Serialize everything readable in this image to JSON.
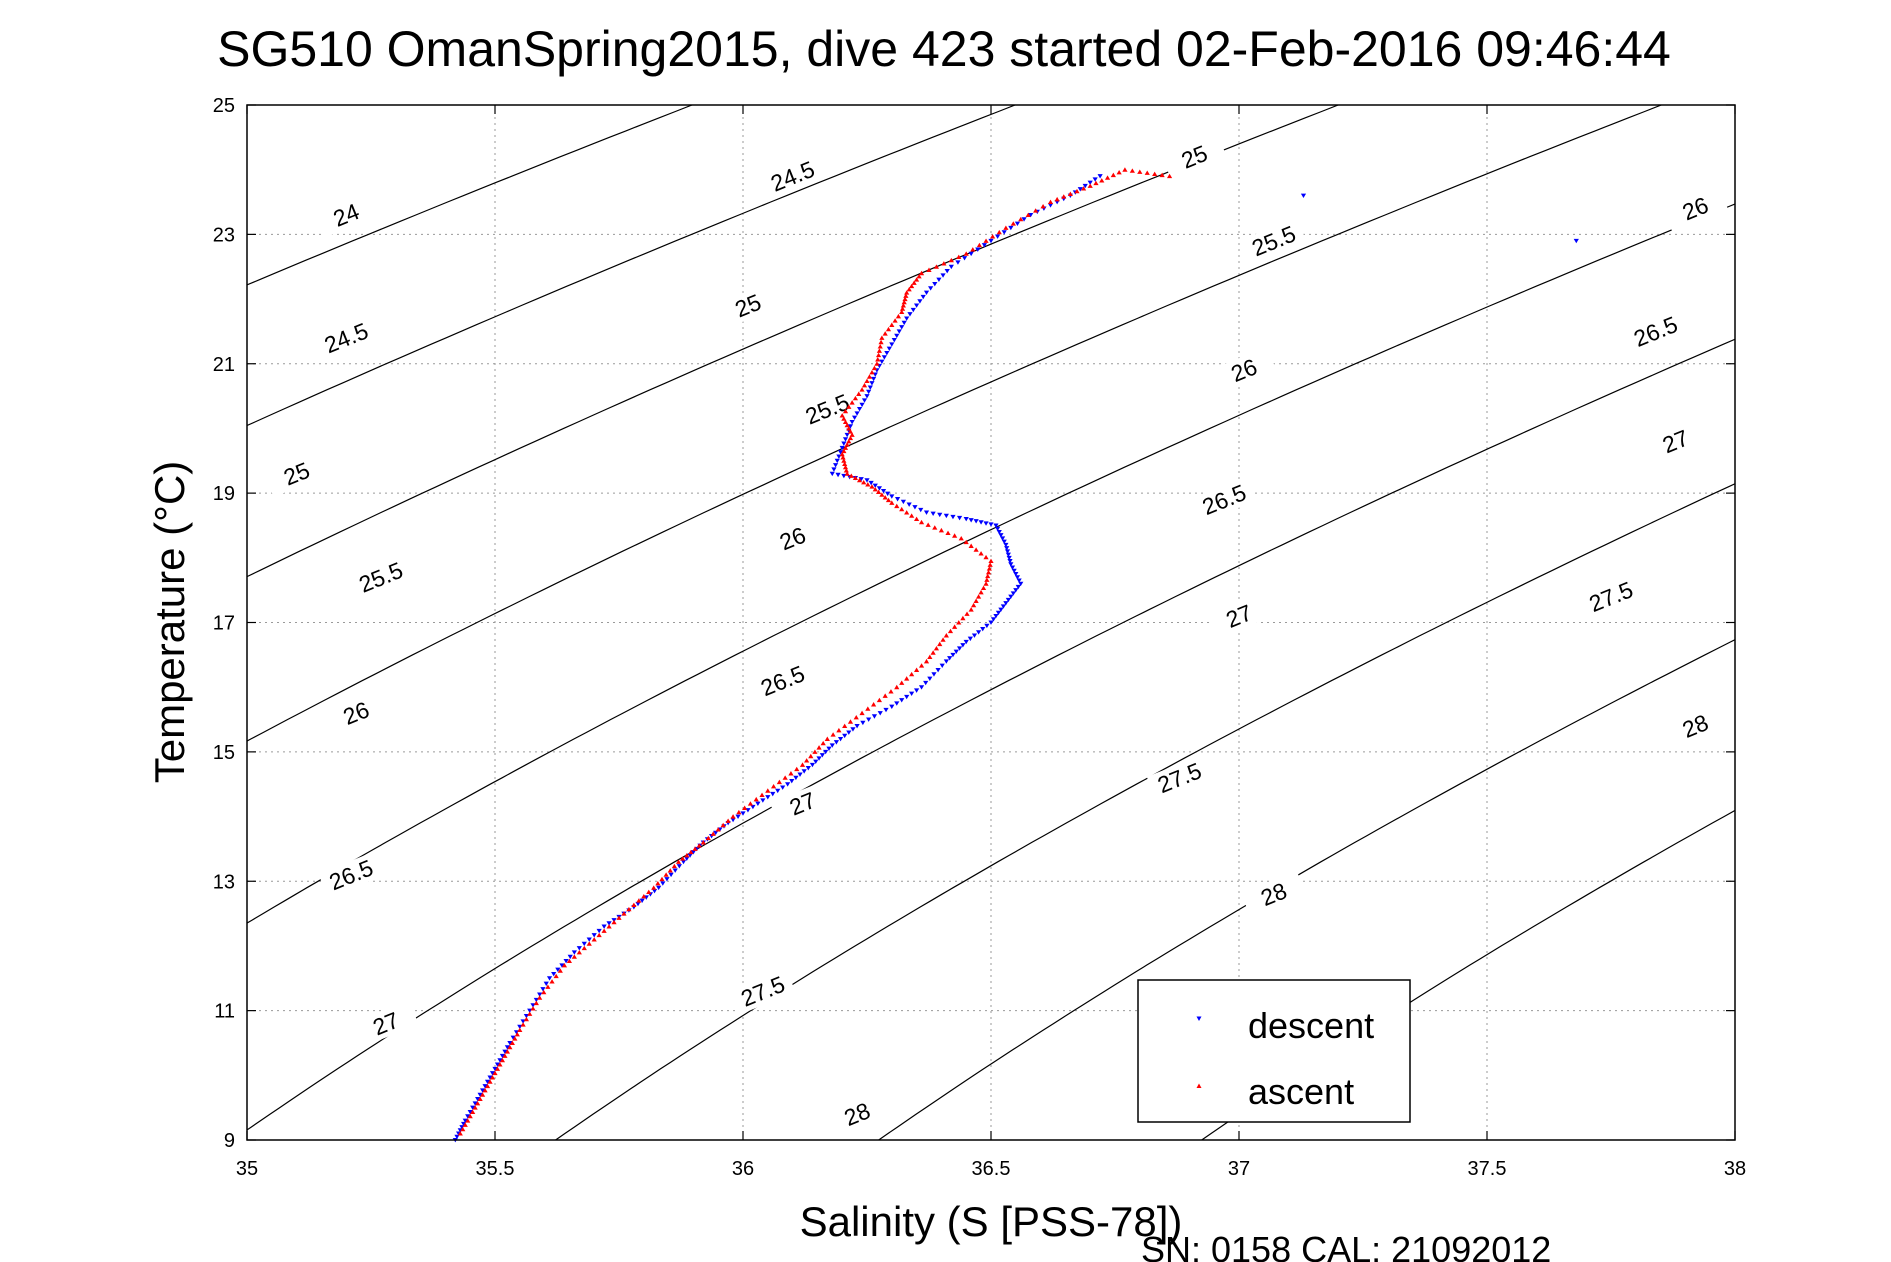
{
  "chart_data": {
    "type": "scatter",
    "title": "SG510 OmanSpring2015, dive 423 started 02-Feb-2016 09:46:44",
    "xlabel": "Salinity (S [PSS-78])",
    "ylabel": "Temperature (°C)",
    "footer": "SN: 0158  CAL: 21092012",
    "xlim": [
      35,
      38
    ],
    "ylim": [
      9,
      25
    ],
    "xticks": [
      35,
      35.5,
      36,
      36.5,
      37,
      37.5,
      38
    ],
    "xtick_labels": [
      "35",
      "35.5",
      "36",
      "36.5",
      "37",
      "37.5",
      "38"
    ],
    "yticks": [
      9,
      11,
      13,
      15,
      17,
      19,
      21,
      23,
      25
    ],
    "ytick_labels": [
      "9",
      "11",
      "13",
      "15",
      "17",
      "19",
      "21",
      "23",
      "25"
    ],
    "grid": true,
    "legend_position": "bottom-right",
    "density_contours": {
      "levels": [
        24,
        24.5,
        25,
        25.5,
        26,
        26.5,
        27,
        27.5,
        28
      ],
      "labels": [
        {
          "text": "24",
          "s": 35.2,
          "t": 23.3
        },
        {
          "text": "24.5",
          "s": 35.2,
          "t": 21.4
        },
        {
          "text": "25",
          "s": 35.1,
          "t": 19.3
        },
        {
          "text": "25.5",
          "s": 35.27,
          "t": 17.7
        },
        {
          "text": "26",
          "s": 35.22,
          "t": 15.6
        },
        {
          "text": "26.5",
          "s": 35.21,
          "t": 13.1
        },
        {
          "text": "27",
          "s": 35.28,
          "t": 10.8
        },
        {
          "text": "24.5",
          "s": 36.1,
          "t": 23.9
        },
        {
          "text": "25",
          "s": 36.01,
          "t": 21.9
        },
        {
          "text": "25.5",
          "s": 36.17,
          "t": 20.3
        },
        {
          "text": "26",
          "s": 36.1,
          "t": 18.3
        },
        {
          "text": "26.5",
          "s": 36.08,
          "t": 16.1
        },
        {
          "text": "27",
          "s": 36.12,
          "t": 14.2
        },
        {
          "text": "27.5",
          "s": 36.04,
          "t": 11.3
        },
        {
          "text": "28",
          "s": 36.23,
          "t": 9.4
        },
        {
          "text": "25",
          "s": 36.91,
          "t": 24.2
        },
        {
          "text": "25.5",
          "s": 37.07,
          "t": 22.9
        },
        {
          "text": "26",
          "s": 37.01,
          "t": 20.9
        },
        {
          "text": "26.5",
          "s": 36.97,
          "t": 18.9
        },
        {
          "text": "27",
          "s": 37.0,
          "t": 17.1
        },
        {
          "text": "27.5",
          "s": 36.88,
          "t": 14.6
        },
        {
          "text": "28",
          "s": 37.07,
          "t": 12.8
        },
        {
          "text": "26",
          "s": 37.92,
          "t": 23.4
        },
        {
          "text": "26.5",
          "s": 37.84,
          "t": 21.5
        },
        {
          "text": "27",
          "s": 37.88,
          "t": 19.8
        },
        {
          "text": "27.5",
          "s": 37.75,
          "t": 17.4
        },
        {
          "text": "28",
          "s": 37.92,
          "t": 15.4
        }
      ]
    },
    "series": [
      {
        "name": "descent",
        "color": "#0000ff",
        "marker": "triangle-down",
        "points": [
          [
            35.42,
            9.0
          ],
          [
            35.44,
            9.3
          ],
          [
            35.47,
            9.7
          ],
          [
            35.5,
            10.1
          ],
          [
            35.53,
            10.5
          ],
          [
            35.57,
            11.0
          ],
          [
            35.61,
            11.5
          ],
          [
            35.66,
            11.9
          ],
          [
            35.72,
            12.3
          ],
          [
            35.78,
            12.6
          ],
          [
            35.83,
            12.9
          ],
          [
            35.88,
            13.3
          ],
          [
            35.92,
            13.6
          ],
          [
            35.97,
            13.9
          ],
          [
            36.03,
            14.2
          ],
          [
            36.09,
            14.5
          ],
          [
            36.14,
            14.8
          ],
          [
            36.18,
            15.1
          ],
          [
            36.23,
            15.4
          ],
          [
            36.3,
            15.7
          ],
          [
            36.36,
            16.0
          ],
          [
            36.41,
            16.4
          ],
          [
            36.45,
            16.7
          ],
          [
            36.5,
            17.0
          ],
          [
            36.53,
            17.3
          ],
          [
            36.56,
            17.6
          ],
          [
            36.54,
            17.9
          ],
          [
            36.53,
            18.2
          ],
          [
            36.51,
            18.5
          ],
          [
            36.45,
            18.6
          ],
          [
            36.37,
            18.7
          ],
          [
            36.3,
            18.95
          ],
          [
            36.25,
            19.2
          ],
          [
            36.18,
            19.3
          ],
          [
            36.2,
            19.7
          ],
          [
            36.22,
            20.1
          ],
          [
            36.25,
            20.5
          ],
          [
            36.27,
            20.9
          ],
          [
            36.3,
            21.3
          ],
          [
            36.33,
            21.7
          ],
          [
            36.37,
            22.1
          ],
          [
            36.42,
            22.5
          ],
          [
            36.5,
            22.9
          ],
          [
            36.58,
            23.3
          ],
          [
            36.66,
            23.6
          ],
          [
            36.72,
            23.9
          ],
          [
            37.13,
            23.6
          ],
          [
            37.68,
            22.9
          ]
        ]
      },
      {
        "name": "ascent",
        "color": "#ff0000",
        "marker": "triangle-up",
        "points": [
          [
            35.43,
            9.1
          ],
          [
            35.46,
            9.5
          ],
          [
            35.49,
            9.9
          ],
          [
            35.52,
            10.3
          ],
          [
            35.55,
            10.7
          ],
          [
            35.59,
            11.2
          ],
          [
            35.64,
            11.7
          ],
          [
            35.7,
            12.1
          ],
          [
            35.76,
            12.5
          ],
          [
            35.82,
            12.9
          ],
          [
            35.87,
            13.3
          ],
          [
            35.92,
            13.6
          ],
          [
            35.98,
            14.0
          ],
          [
            36.05,
            14.4
          ],
          [
            36.12,
            14.8
          ],
          [
            36.17,
            15.2
          ],
          [
            36.24,
            15.6
          ],
          [
            36.31,
            16.0
          ],
          [
            36.37,
            16.4
          ],
          [
            36.41,
            16.8
          ],
          [
            36.46,
            17.2
          ],
          [
            36.49,
            17.6
          ],
          [
            36.5,
            17.95
          ],
          [
            36.44,
            18.3
          ],
          [
            36.36,
            18.55
          ],
          [
            36.3,
            18.85
          ],
          [
            36.26,
            19.1
          ],
          [
            36.21,
            19.3
          ],
          [
            36.2,
            19.6
          ],
          [
            36.22,
            19.9
          ],
          [
            36.2,
            20.2
          ],
          [
            36.24,
            20.6
          ],
          [
            36.27,
            21.0
          ],
          [
            36.28,
            21.4
          ],
          [
            36.32,
            21.8
          ],
          [
            36.33,
            22.1
          ],
          [
            36.36,
            22.4
          ],
          [
            36.45,
            22.7
          ],
          [
            36.53,
            23.1
          ],
          [
            36.62,
            23.5
          ],
          [
            36.7,
            23.75
          ],
          [
            36.77,
            24.0
          ],
          [
            36.86,
            23.9
          ]
        ]
      }
    ]
  }
}
